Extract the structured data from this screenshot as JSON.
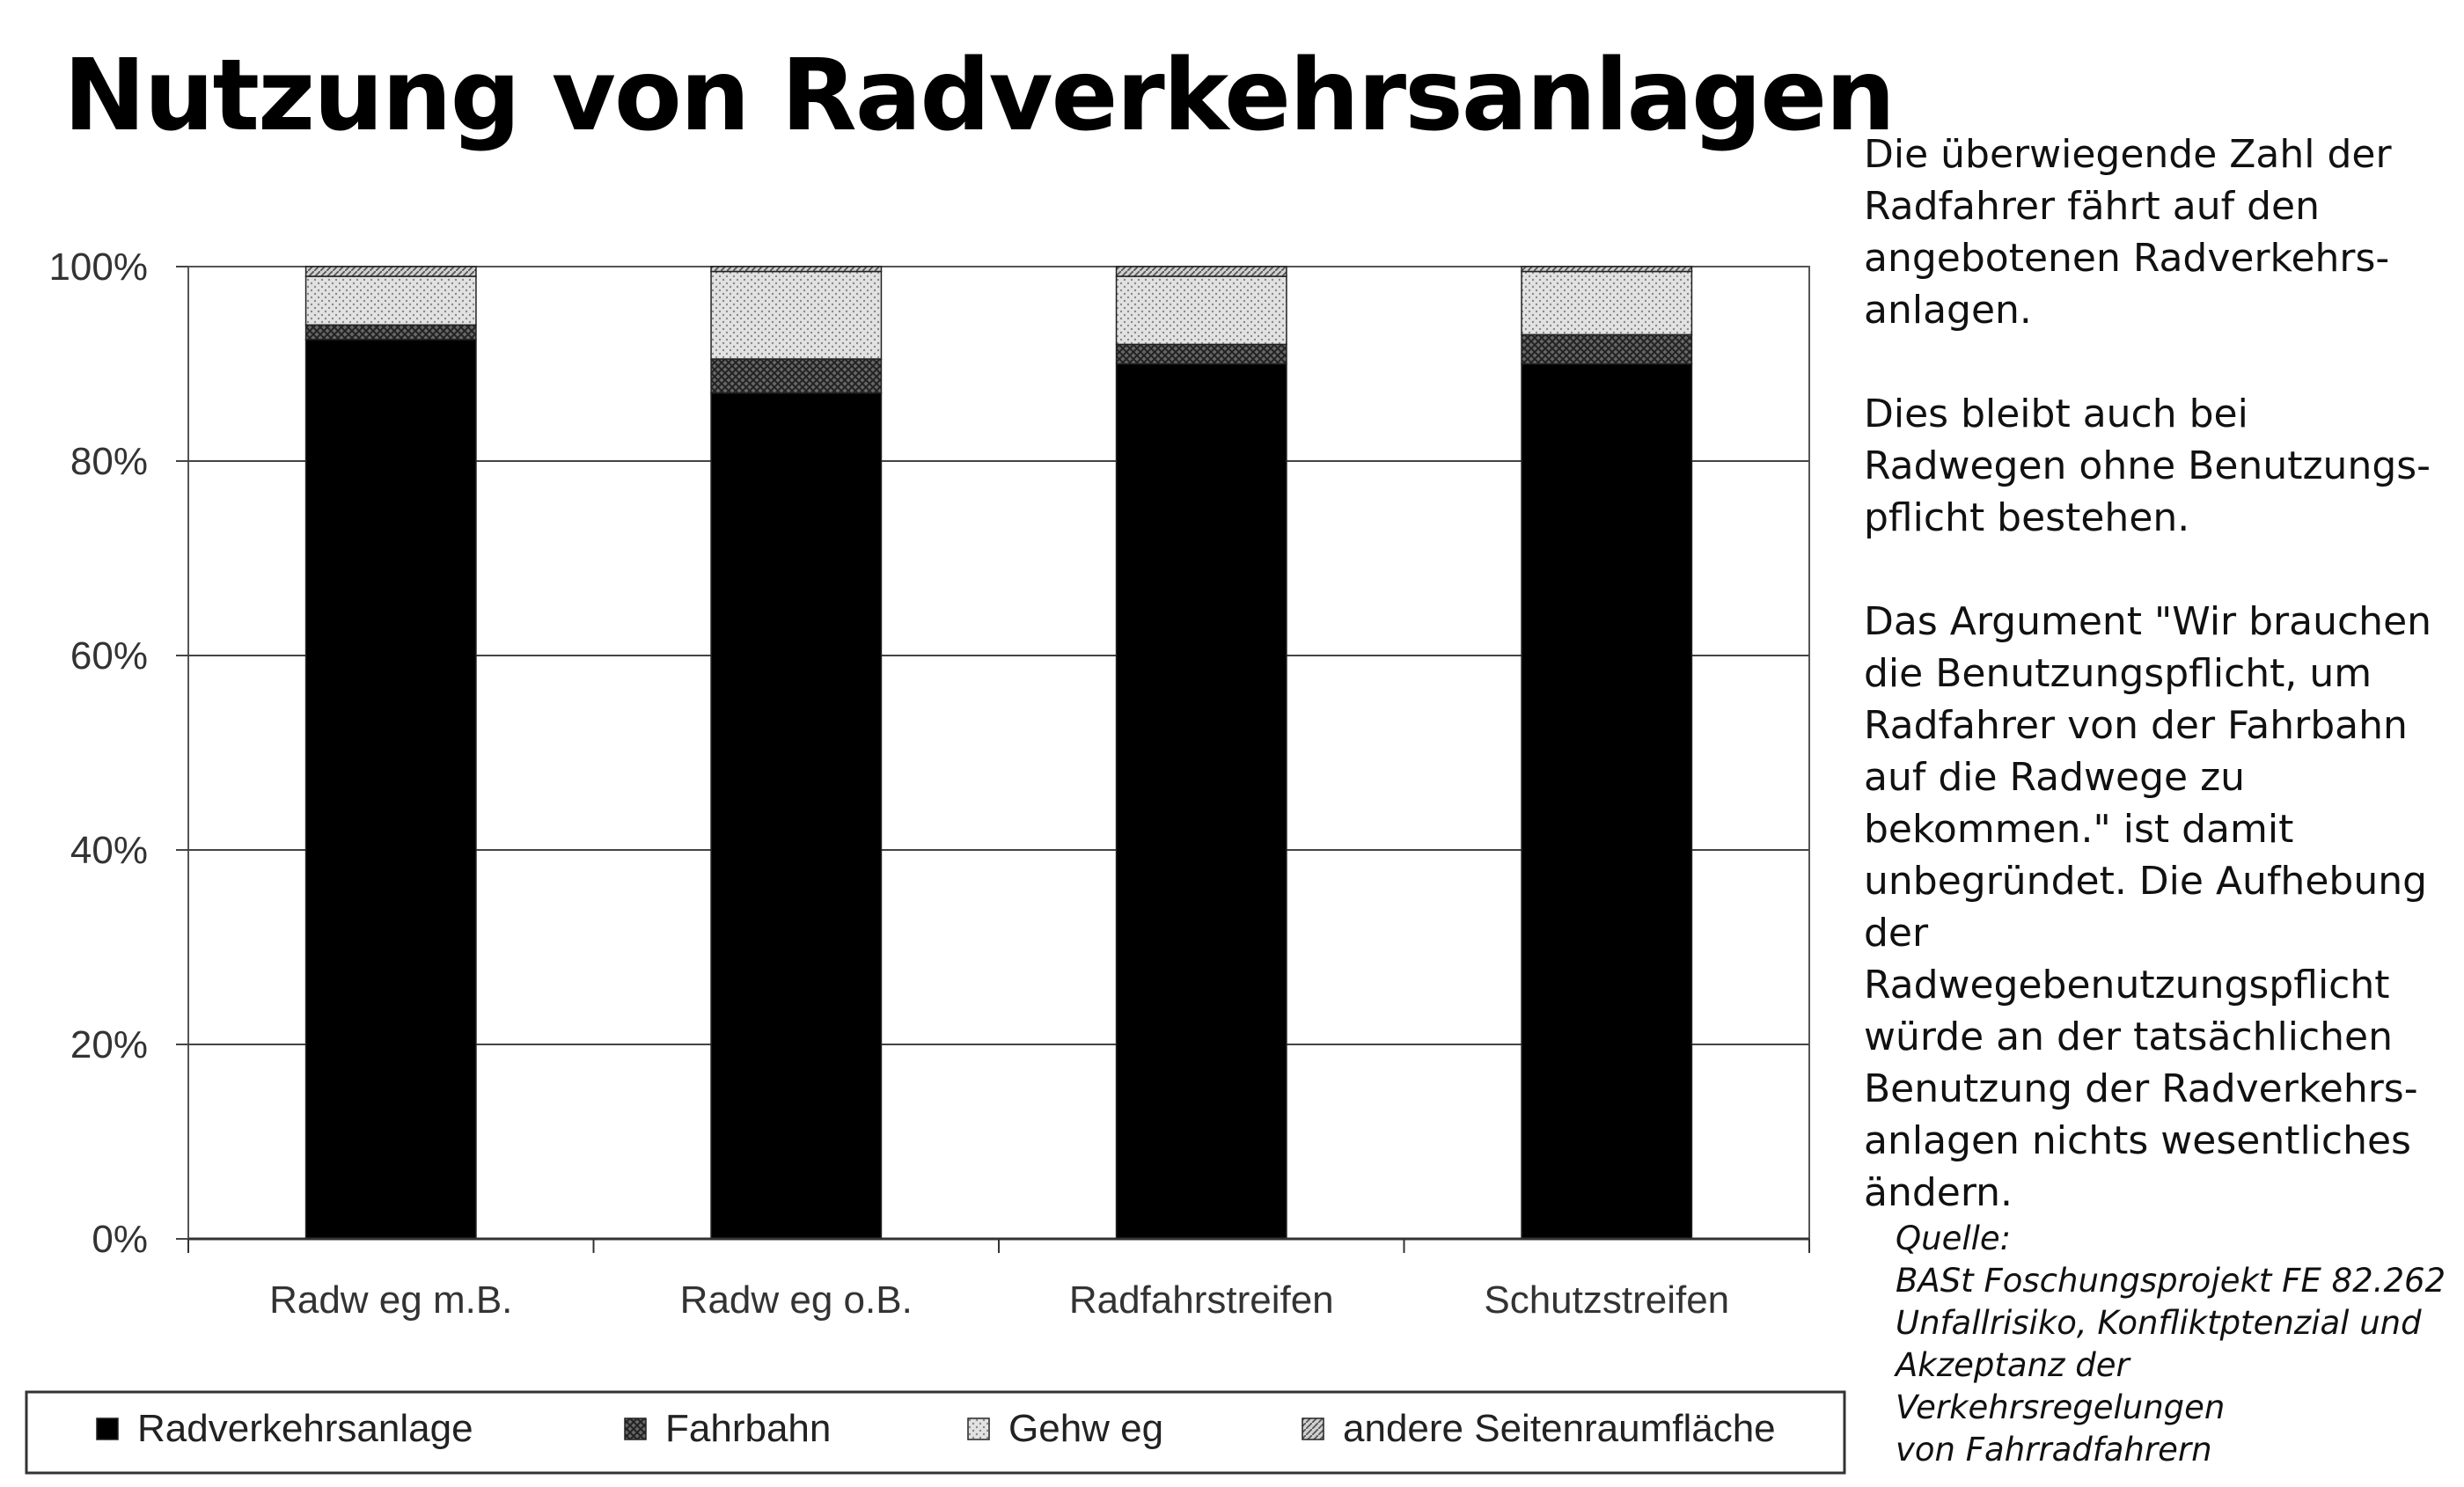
{
  "title": "Nutzung von Radverkehrsanlagen",
  "side_text": {
    "p1": "Die überwiegende Zahl der\nRadfahrer fährt auf den\nangebotenen Radverkehrs-\nanlagen.",
    "p2": "Dies bleibt auch bei\nRadwegen ohne Benutzungs-\npflicht bestehen.",
    "p3": "Das Argument \"Wir brauchen\ndie Benutzungspflicht, um\nRadfahrer von der Fahrbahn\nauf die Radwege zu\nbekommen.\" ist damit\nunbegründet. Die Aufhebung\nder Radwegebenutzungspflicht\nwürde an der tatsächlichen\nBenutzung der Radverkehrs-\nanlagen nichts wesentliches\nändern."
  },
  "source": {
    "label": "Quelle:",
    "text": "BASt Foschungsprojekt FE 82.262\nUnfallrisiko, Konfliktptenzial und\nAkzeptanz der Verkehrsregelungen\nvon Fahrradfahrern"
  },
  "chart_data": {
    "type": "bar",
    "stacked": true,
    "categories": [
      "Radw eg m.B.",
      "Radw eg o.B.",
      "Radfahrstreifen",
      "Schutzstreifen"
    ],
    "series": [
      {
        "name": "Radverkehrsanlage",
        "values": [
          92.5,
          87,
          90,
          90
        ],
        "color": "#000000",
        "pattern": "solid"
      },
      {
        "name": "Fahrbahn",
        "values": [
          1.5,
          3.5,
          2,
          3
        ],
        "color": "#555555",
        "pattern": "crosshatch"
      },
      {
        "name": "Gehw eg",
        "values": [
          5,
          9,
          7,
          6.5
        ],
        "color": "#cccccc",
        "pattern": "dots"
      },
      {
        "name": "andere Seitenraumfläche",
        "values": [
          1,
          0.5,
          1,
          0.5
        ],
        "color": "#999999",
        "pattern": "diagonal"
      }
    ],
    "yticks": [
      "0%",
      "20%",
      "40%",
      "60%",
      "80%",
      "100%"
    ],
    "ylim": [
      0,
      100
    ],
    "grid": true,
    "legend": "bottom"
  }
}
